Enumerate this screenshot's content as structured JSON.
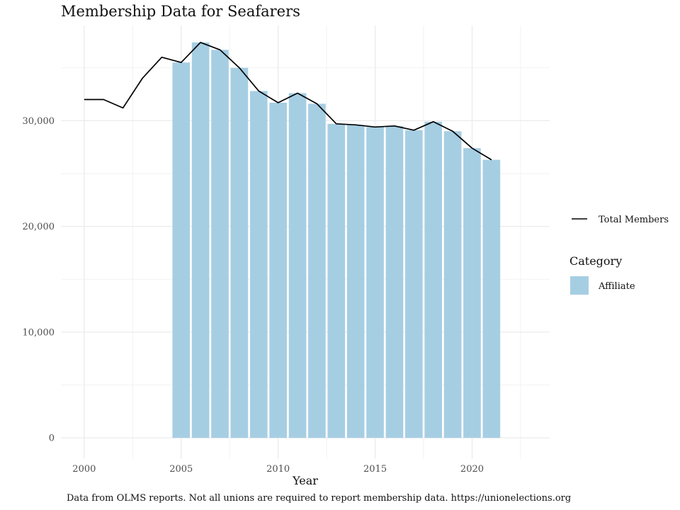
{
  "chart_data": {
    "type": "bar",
    "title": "Membership Data for Seafarers",
    "xlabel": "Year",
    "ylabel": "",
    "caption": "Data from OLMS reports. Not all unions are required to report membership data. https://unionelections.org",
    "xlim": [
      1998.8,
      2024.0
    ],
    "ylim": [
      -2000,
      39000
    ],
    "x_ticks": [
      2000,
      2005,
      2010,
      2015,
      2020
    ],
    "x_tick_labels": [
      "2000",
      "2005",
      "2010",
      "2015",
      "2020"
    ],
    "y_ticks": [
      0,
      10000,
      20000,
      30000
    ],
    "y_tick_labels": [
      "0",
      "10,000",
      "20,000",
      "30,000"
    ],
    "grid": true,
    "bar_series": {
      "name": "Affiliate",
      "color": "#a6cee3",
      "x": [
        2005,
        2006,
        2007,
        2008,
        2009,
        2010,
        2011,
        2012,
        2013,
        2014,
        2015,
        2016,
        2017,
        2018,
        2019,
        2020,
        2021
      ],
      "values": [
        35500,
        37400,
        36700,
        35000,
        32800,
        31700,
        32600,
        31600,
        29700,
        29600,
        29400,
        29500,
        29100,
        29900,
        29000,
        27400,
        26300
      ]
    },
    "line_series": {
      "name": "Total Members",
      "color": "#000000",
      "x": [
        2000,
        2001,
        2002,
        2003,
        2004,
        2005,
        2006,
        2007,
        2008,
        2009,
        2010,
        2011,
        2012,
        2013,
        2014,
        2015,
        2016,
        2017,
        2018,
        2019,
        2020,
        2021
      ],
      "values": [
        32000,
        32000,
        31200,
        34000,
        36000,
        35500,
        37400,
        36700,
        35000,
        32800,
        31700,
        32600,
        31600,
        29700,
        29600,
        29400,
        29500,
        29100,
        29900,
        29000,
        27400,
        26300
      ]
    },
    "legend": {
      "position": "right",
      "line_label": "Total Members",
      "category_title": "Category",
      "category_items": [
        "Affiliate"
      ]
    }
  }
}
